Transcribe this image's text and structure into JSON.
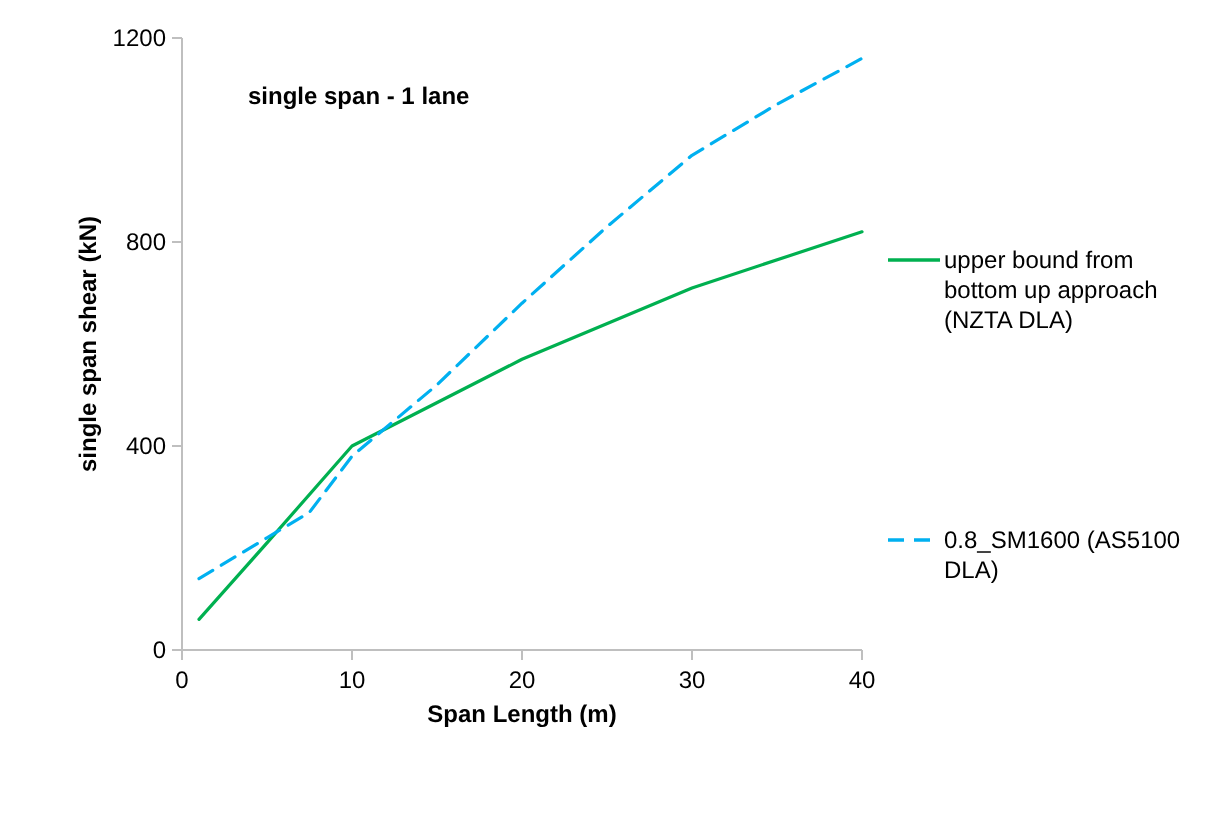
{
  "chart_data": {
    "type": "line",
    "xlabel": "Span Length (m)",
    "ylabel": "single span shear (kN)",
    "annotations": [
      "single span - 1 lane"
    ],
    "xlim": [
      0,
      40
    ],
    "xticks": [
      0,
      10,
      20,
      30,
      40
    ],
    "ylim": [
      0,
      1200
    ],
    "yticks": [
      0,
      400,
      800,
      1200
    ],
    "grid": false,
    "legend": "right",
    "marker": "none",
    "series": [
      {
        "name": "upper bound from bottom up approach (NZTA DLA)",
        "color": "#00b050",
        "line_style": "solid",
        "x": [
          1,
          5,
          10,
          20,
          30,
          40
        ],
        "values": [
          60,
          210,
          400,
          570,
          710,
          820
        ]
      },
      {
        "name": "0.8_SM1600 (AS5100 DLA)",
        "color": "#00b0f0",
        "line_style": "dashed",
        "x": [
          1,
          5,
          7.5,
          10,
          15,
          20,
          25,
          30,
          35,
          40
        ],
        "values": [
          140,
          220,
          270,
          380,
          520,
          680,
          830,
          970,
          1070,
          1160
        ]
      }
    ]
  }
}
